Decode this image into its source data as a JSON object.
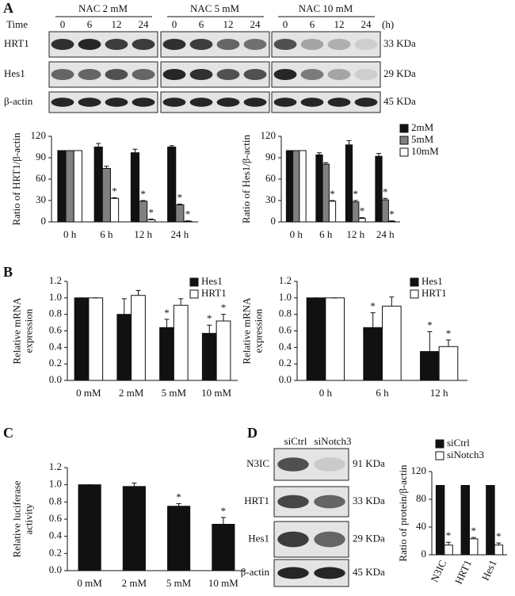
{
  "panel_labels": [
    "A",
    "B",
    "C",
    "D"
  ],
  "blots_a": {
    "time_label": "Time",
    "unit": "(h)",
    "groups": [
      {
        "label": "NAC  2 mM",
        "times": [
          "0",
          "6",
          "12",
          "24"
        ]
      },
      {
        "label": "NAC  5 mM",
        "times": [
          "0",
          "6",
          "12",
          "24"
        ]
      },
      {
        "label": "NAC  10 mM",
        "times": [
          "0",
          "6",
          "12",
          "24"
        ]
      }
    ],
    "rows": [
      {
        "label": "HRT1",
        "size": "33 KDa"
      },
      {
        "label": "Hes1",
        "size": "29 KDa"
      },
      {
        "label": "β-actin",
        "size": "45 KDa"
      }
    ]
  },
  "blots_d": {
    "lanes": [
      "siCtrl",
      "siNotch3"
    ],
    "rows": [
      {
        "label": "N3IC",
        "size": "91 KDa"
      },
      {
        "label": "HRT1",
        "size": "33 KDa"
      },
      {
        "label": "Hes1",
        "size": "29 KDa"
      },
      {
        "label": "β-actin",
        "size": "45 KDa"
      }
    ]
  },
  "chart_data": [
    {
      "type": "bar",
      "ylabel": [
        "Ratio of HRT1/β-actin"
      ],
      "categories": [
        "0 h",
        "6 h",
        "12 h",
        "24 h"
      ],
      "ylim": [
        0,
        120
      ],
      "yticks": [
        0,
        30,
        60,
        90,
        120
      ],
      "series": [
        {
          "color": "#111111",
          "values": [
            100,
            105,
            97,
            105
          ],
          "errors": [
            0,
            5,
            5,
            2
          ],
          "marks": [
            null,
            null,
            null,
            null
          ]
        },
        {
          "color": "#808080",
          "values": [
            100,
            75,
            29,
            24
          ],
          "errors": [
            0,
            3,
            1,
            1
          ],
          "marks": [
            null,
            null,
            "*",
            "*"
          ]
        },
        {
          "color": "#ffffff",
          "values": [
            100,
            33,
            3,
            1
          ],
          "errors": [
            0,
            1,
            1,
            0.5
          ],
          "marks": [
            null,
            "*",
            "*",
            "*"
          ]
        }
      ]
    },
    {
      "type": "bar",
      "ylabel": [
        "Ratio of Hes1/β-actin"
      ],
      "categories": [
        "0 h",
        "6 h",
        "12 h",
        "24 h"
      ],
      "ylim": [
        0,
        120
      ],
      "yticks": [
        0,
        30,
        60,
        90,
        120
      ],
      "legend": "upper right",
      "series": [
        {
          "name": "2mM",
          "color": "#111111",
          "values": [
            100,
            94,
            108,
            92
          ],
          "errors": [
            0,
            3,
            6,
            4
          ],
          "marks": [
            null,
            null,
            null,
            null
          ]
        },
        {
          "name": "5mM",
          "color": "#808080",
          "values": [
            100,
            81,
            28,
            31
          ],
          "errors": [
            0,
            2,
            2,
            2
          ],
          "marks": [
            null,
            null,
            "*",
            "*"
          ]
        },
        {
          "name": "10mM",
          "color": "#ffffff",
          "values": [
            100,
            29,
            5,
            1
          ],
          "errors": [
            0,
            1,
            1,
            0.5
          ],
          "marks": [
            null,
            "*",
            "*",
            "*"
          ]
        }
      ]
    },
    {
      "type": "bar",
      "ylabel": [
        "Relative mRNA",
        "expression"
      ],
      "categories": [
        "0 mM",
        "2 mM",
        "5 mM",
        "10 mM"
      ],
      "ylim": [
        0,
        1.2
      ],
      "yticks": [
        {
          "value": 0,
          "label": "0.0"
        },
        0.2,
        0.4,
        0.6,
        0.8,
        {
          "value": 1,
          "label": "1.0"
        },
        1.2
      ],
      "legend": "upper right",
      "series": [
        {
          "name": "Hes1",
          "color": "#111111",
          "values": [
            1,
            0.8,
            0.64,
            0.57
          ],
          "errors": [
            0,
            0.19,
            0.1,
            0.1
          ],
          "marks": [
            null,
            null,
            "*",
            "*"
          ]
        },
        {
          "name": "HRT1",
          "color": "#ffffff",
          "values": [
            1,
            1.03,
            0.91,
            0.72
          ],
          "errors": [
            0,
            0.06,
            0.08,
            0.08
          ],
          "marks": [
            null,
            null,
            null,
            "*"
          ]
        }
      ]
    },
    {
      "type": "bar",
      "ylabel": [
        "Relative mRNA",
        "expression"
      ],
      "categories": [
        "0 h",
        "6 h",
        "12 h"
      ],
      "ylim": [
        0,
        1.2
      ],
      "yticks": [
        {
          "value": 0,
          "label": "0.0"
        },
        0.2,
        0.4,
        0.6,
        0.8,
        {
          "value": 1,
          "label": "1.0"
        },
        1.2
      ],
      "legend": "upper right",
      "series": [
        {
          "name": "Hes1",
          "color": "#111111",
          "values": [
            1,
            0.64,
            0.35
          ],
          "errors": [
            0,
            0.18,
            0.24
          ],
          "marks": [
            null,
            "*",
            "*"
          ]
        },
        {
          "name": "HRT1",
          "color": "#ffffff",
          "values": [
            1,
            0.9,
            0.41
          ],
          "errors": [
            0,
            0.11,
            0.08
          ],
          "marks": [
            null,
            null,
            "*"
          ]
        }
      ]
    },
    {
      "type": "bar",
      "ylabel": [
        "Relative luciferase",
        "activity"
      ],
      "categories": [
        "0 mM",
        "2 mM",
        "5 mM",
        "10 mM"
      ],
      "ylim": [
        0,
        1.2
      ],
      "yticks": [
        {
          "value": 0,
          "label": "0.0"
        },
        0.2,
        0.4,
        0.6,
        0.8,
        {
          "value": 1,
          "label": "1.0"
        },
        1.2
      ],
      "series": [
        {
          "color": "#111111",
          "values": [
            1,
            0.98,
            0.75,
            0.54
          ],
          "errors": [
            0,
            0.04,
            0.03,
            0.08
          ],
          "marks": [
            null,
            null,
            "*",
            "*"
          ]
        }
      ]
    },
    {
      "type": "bar",
      "ylabel": [
        "Ratio of protein/β-actin"
      ],
      "categories": [
        "N3IC",
        "HRT1",
        "Hes1"
      ],
      "ylim": [
        0,
        120
      ],
      "yticks": [
        0,
        40,
        80,
        120
      ],
      "legend": "upper right",
      "series": [
        {
          "name": "siCtrl",
          "color": "#111111",
          "values": [
            100,
            100,
            100
          ],
          "errors": [
            0,
            0,
            0
          ],
          "marks": [
            null,
            null,
            null
          ]
        },
        {
          "name": "siNotch3",
          "color": "#ffffff",
          "values": [
            14,
            23,
            14
          ],
          "errors": [
            4,
            2,
            3
          ],
          "marks": [
            "*",
            "*",
            "*"
          ]
        }
      ]
    }
  ]
}
